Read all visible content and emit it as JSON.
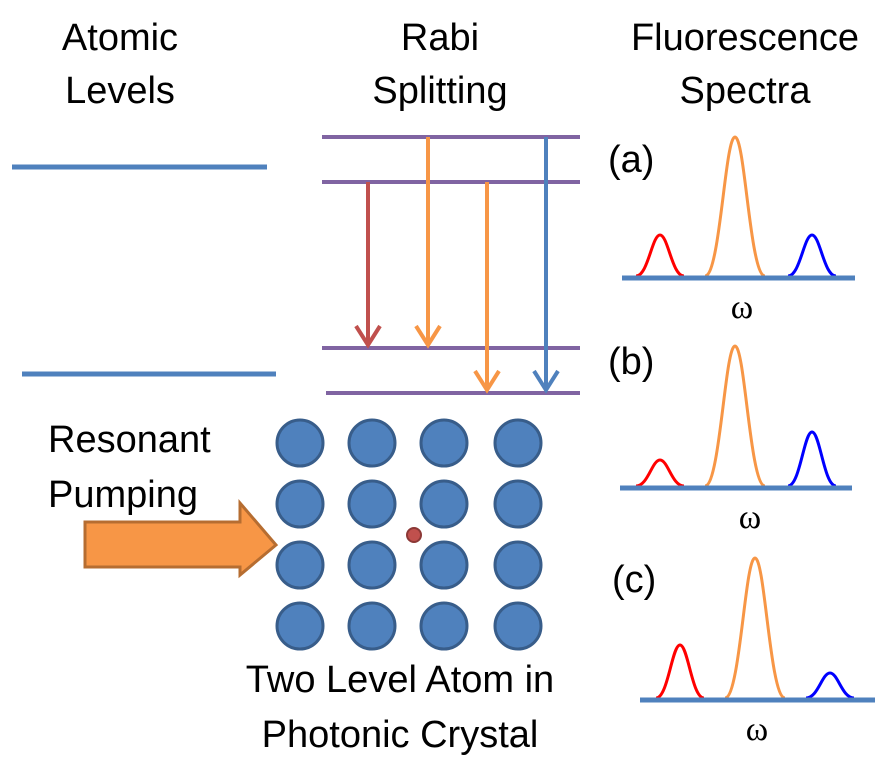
{
  "columns": {
    "atomic_levels": [
      "Atomic",
      "Levels"
    ],
    "rabi_splitting": [
      "Rabi",
      "Splitting"
    ],
    "fluorescence_spectra": [
      "Fluorescence",
      "Spectra"
    ]
  },
  "spectra": [
    {
      "label": "(a)",
      "axis": "ω"
    },
    {
      "label": "(b)",
      "axis": "ω"
    },
    {
      "label": "(c)",
      "axis": "ω"
    }
  ],
  "pumping": [
    "Resonant",
    "Pumping"
  ],
  "crystal": [
    "Two Level Atom in",
    "Photonic Crystal"
  ]
}
